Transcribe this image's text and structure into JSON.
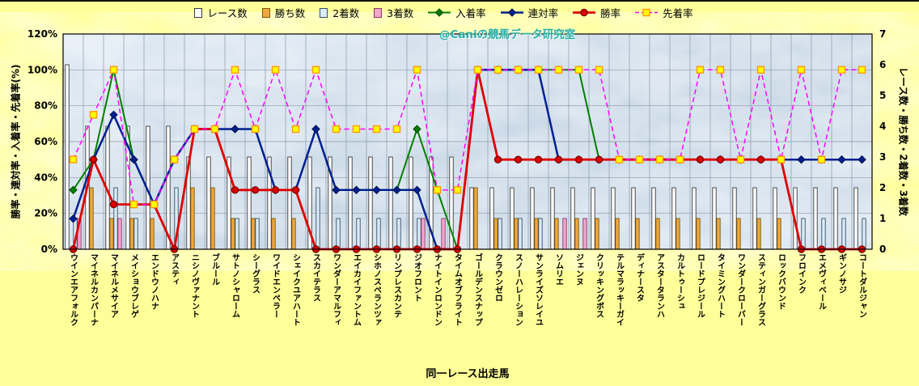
{
  "page": {
    "background": "#FFFF99"
  },
  "chart_data": {
    "type": "combo-bar-line",
    "xlabel": "同一レース出走馬",
    "watermark": "@Caniの競馬データ研究室",
    "plot_background": "#C9D8E6",
    "grid_color": "#8A99AB",
    "left_axis": {
      "title": "勝率・連対率・入着率・先着率(%)",
      "min": 0,
      "max": 120,
      "ticks": [
        "0%",
        "20%",
        "40%",
        "60%",
        "80%",
        "100%",
        "120%"
      ]
    },
    "right_axis": {
      "title": "レース数・勝ち数・2着数・3着数",
      "min": 0,
      "max": 7,
      "ticks": [
        "0",
        "1",
        "2",
        "3",
        "4",
        "5",
        "6",
        "7"
      ]
    },
    "categories": [
      "ウインエアフォルク",
      "マイネルカンパーナ",
      "マイネルメサイア",
      "メイショウブレゲ",
      "エンドウノハナ",
      "アスティ",
      "ニシノヴァナント",
      "ブルール",
      "サトノシャローム",
      "シーグラス",
      "ワイドエンペラー",
      "シェイクユアハート",
      "スカイテラス",
      "ワンダーアマルフィ",
      "エイカイファントム",
      "シホノスペランツァ",
      "リンプレスカンテ",
      "ジオフロント",
      "ナイトインロンドン",
      "タイムオブフライト",
      "ゴールデンスナップ",
      "クラウンゼロ",
      "スノーハレーション",
      "サンライズソレイユ",
      "ソムリエ",
      "ジェンヌ",
      "クリッキングボス",
      "テルマラッキーガイ",
      "ディナースタ",
      "アスタータランハ",
      "カルトゥーシュ",
      "ロードプレジール",
      "タイミングハート",
      "ワンダークローバー",
      "スティンガーグラス",
      "ロックバウンド",
      "フロインク",
      "エメヴィベール",
      "ギンノサジ",
      "コートダルジャン"
    ],
    "bar_series": [
      {
        "key": "races",
        "name": "レース数",
        "axis": "right",
        "fill": "#FFFFFF",
        "edge": "#3A3A3A",
        "values": [
          6,
          4,
          4,
          4,
          4,
          4,
          3,
          3,
          3,
          3,
          3,
          3,
          3,
          3,
          3,
          3,
          3,
          3,
          3,
          3,
          2,
          2,
          2,
          2,
          2,
          2,
          2,
          2,
          2,
          2,
          2,
          2,
          2,
          2,
          2,
          2,
          2,
          2,
          2,
          2
        ]
      },
      {
        "key": "wins",
        "name": "勝ち数",
        "axis": "right",
        "fill": "#F0A83C",
        "edge": "#7A5A10",
        "values": [
          0,
          2,
          1,
          1,
          1,
          0,
          2,
          2,
          1,
          1,
          1,
          1,
          0,
          0,
          0,
          0,
          0,
          0,
          0,
          0,
          2,
          1,
          1,
          1,
          1,
          1,
          1,
          1,
          1,
          1,
          1,
          1,
          1,
          1,
          1,
          1,
          0,
          0,
          0,
          0
        ]
      },
      {
        "key": "second-places",
        "name": "2着数",
        "axis": "right",
        "fill": "#DCEBF5",
        "edge": "#33506B",
        "values": [
          1,
          0,
          2,
          1,
          0,
          2,
          0,
          0,
          1,
          1,
          0,
          0,
          2,
          1,
          1,
          1,
          1,
          1,
          0,
          0,
          0,
          1,
          1,
          1,
          0,
          0,
          0,
          0,
          0,
          0,
          0,
          0,
          0,
          0,
          0,
          0,
          1,
          1,
          1,
          1
        ]
      },
      {
        "key": "third-places",
        "name": "3着数",
        "axis": "right",
        "fill": "#F2A6CE",
        "edge": "#8A3A66",
        "values": [
          1,
          0,
          1,
          0,
          0,
          0,
          0,
          0,
          0,
          0,
          0,
          0,
          0,
          0,
          0,
          0,
          0,
          1,
          1,
          0,
          0,
          0,
          0,
          0,
          1,
          1,
          0,
          0,
          0,
          0,
          0,
          0,
          0,
          0,
          0,
          0,
          0,
          0,
          0,
          0
        ]
      }
    ],
    "line_series": [
      {
        "key": "place-rate",
        "name": "入着率",
        "axis": "left",
        "color": "#008000",
        "width": 2,
        "dashed": false,
        "marker": "diamond",
        "marker_fill": "#008000",
        "marker_edge": "#004000",
        "values": [
          33,
          50,
          100,
          50,
          25,
          50,
          67,
          67,
          67,
          67,
          33,
          33,
          67,
          33,
          33,
          33,
          33,
          67,
          33,
          0,
          100,
          100,
          100,
          100,
          100,
          100,
          50,
          50,
          50,
          50,
          50,
          50,
          50,
          50,
          50,
          50,
          50,
          50,
          50,
          50
        ]
      },
      {
        "key": "top2-rate",
        "name": "連対率",
        "axis": "left",
        "color": "#002090",
        "width": 2.5,
        "dashed": false,
        "marker": "diamond",
        "marker_fill": "#002090",
        "marker_edge": "#001050",
        "values": [
          17,
          50,
          75,
          50,
          25,
          50,
          67,
          67,
          67,
          67,
          33,
          33,
          67,
          33,
          33,
          33,
          33,
          33,
          0,
          0,
          100,
          100,
          100,
          100,
          50,
          50,
          50,
          50,
          50,
          50,
          50,
          50,
          50,
          50,
          50,
          50,
          50,
          50,
          50,
          50
        ]
      },
      {
        "key": "win-rate",
        "name": "勝率",
        "axis": "left",
        "color": "#DE0000",
        "width": 2.8,
        "dashed": false,
        "marker": "circle",
        "marker_fill": "#DE0000",
        "marker_edge": "#7F0000",
        "values": [
          0,
          50,
          25,
          25,
          25,
          0,
          67,
          67,
          33,
          33,
          33,
          33,
          0,
          0,
          0,
          0,
          0,
          0,
          0,
          0,
          100,
          50,
          50,
          50,
          50,
          50,
          50,
          50,
          50,
          50,
          50,
          50,
          50,
          50,
          50,
          50,
          0,
          0,
          0,
          0
        ]
      },
      {
        "key": "ahead-rate",
        "name": "先着率",
        "axis": "left",
        "color": "#FF00FF",
        "width": 1.5,
        "dashed": true,
        "marker": "square",
        "marker_fill": "#FFFF00",
        "marker_edge": "#FF9900",
        "values": [
          50,
          75,
          100,
          25,
          25,
          50,
          67,
          67,
          100,
          67,
          100,
          67,
          100,
          67,
          67,
          67,
          67,
          100,
          33,
          33,
          100,
          100,
          100,
          100,
          100,
          100,
          100,
          50,
          50,
          50,
          50,
          100,
          100,
          50,
          100,
          50,
          100,
          50,
          100,
          100
        ]
      }
    ]
  }
}
